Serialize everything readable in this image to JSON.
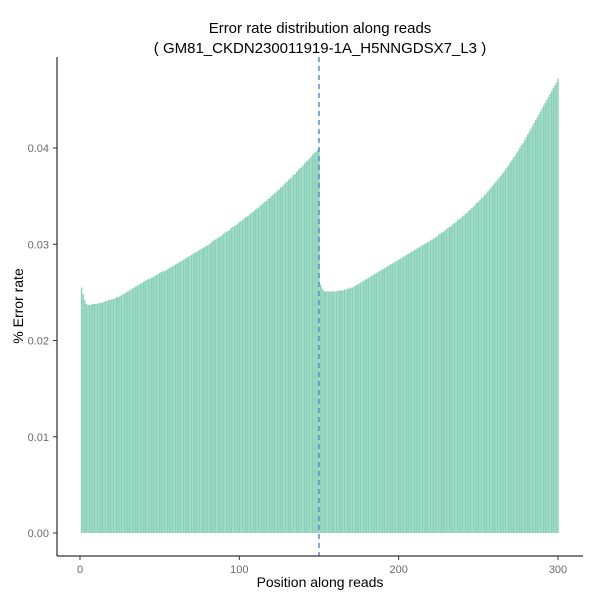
{
  "chart_data": {
    "type": "bar",
    "title": "Error rate distribution along reads",
    "subtitle": "( GM81_CKDN230011919-1A_H5NNGDSX7_L3 )",
    "xlabel": "Position along reads",
    "ylabel": "% Error rate",
    "xlim": [
      0,
      300
    ],
    "ylim": [
      0,
      0.047
    ],
    "xticks": [
      0,
      100,
      200,
      300
    ],
    "xtick_labels": [
      "0",
      "100",
      "200",
      "300"
    ],
    "yticks": [
      0,
      0.01,
      0.02,
      0.03,
      0.04
    ],
    "ytick_labels": [
      "0.00",
      "0.01",
      "0.02",
      "0.03",
      "0.04"
    ],
    "grid": false,
    "legend": "none",
    "bar_color": "#88d1b8",
    "vline": {
      "x": 150,
      "color": "#3b7dc4",
      "style": "dashed"
    },
    "x_start": 1,
    "values": [
      0.0255,
      0.0248,
      0.0242,
      0.0238,
      0.0237,
      0.0237,
      0.0237,
      0.0238,
      0.0238,
      0.0238,
      0.0238,
      0.0239,
      0.0239,
      0.0239,
      0.024,
      0.0241,
      0.0241,
      0.0242,
      0.0242,
      0.0243,
      0.0243,
      0.0244,
      0.0245,
      0.0245,
      0.0246,
      0.0247,
      0.0248,
      0.0249,
      0.025,
      0.0251,
      0.0252,
      0.0253,
      0.0254,
      0.0255,
      0.0256,
      0.0257,
      0.0258,
      0.0259,
      0.026,
      0.0261,
      0.0262,
      0.0263,
      0.0264,
      0.0264,
      0.0265,
      0.0266,
      0.0267,
      0.0268,
      0.0269,
      0.027,
      0.0271,
      0.0272,
      0.0272,
      0.0273,
      0.0274,
      0.0275,
      0.0276,
      0.0277,
      0.0278,
      0.0279,
      0.028,
      0.0281,
      0.0282,
      0.0283,
      0.0284,
      0.0285,
      0.0286,
      0.0287,
      0.0288,
      0.0289,
      0.029,
      0.0291,
      0.0292,
      0.0293,
      0.0294,
      0.0295,
      0.0296,
      0.0297,
      0.0298,
      0.0299,
      0.03,
      0.0301,
      0.0303,
      0.0304,
      0.0305,
      0.0306,
      0.0307,
      0.0308,
      0.0309,
      0.0311,
      0.0312,
      0.0313,
      0.0314,
      0.0315,
      0.0317,
      0.0318,
      0.0319,
      0.032,
      0.0321,
      0.0323,
      0.0324,
      0.0325,
      0.0327,
      0.0328,
      0.0329,
      0.033,
      0.0332,
      0.0333,
      0.0334,
      0.0336,
      0.0337,
      0.0338,
      0.034,
      0.0341,
      0.0343,
      0.0344,
      0.0345,
      0.0347,
      0.0348,
      0.035,
      0.0351,
      0.0353,
      0.0354,
      0.0356,
      0.0357,
      0.0359,
      0.036,
      0.0362,
      0.0364,
      0.0365,
      0.0367,
      0.0368,
      0.037,
      0.0372,
      0.0373,
      0.0375,
      0.0377,
      0.0379,
      0.038,
      0.0382,
      0.0384,
      0.0386,
      0.0387,
      0.0389,
      0.0391,
      0.0393,
      0.0395,
      0.0396,
      0.0398,
      0.04,
      0.0258,
      0.0254,
      0.0252,
      0.0251,
      0.0251,
      0.0251,
      0.0251,
      0.0251,
      0.0251,
      0.0251,
      0.0251,
      0.0252,
      0.0252,
      0.0252,
      0.0252,
      0.0253,
      0.0253,
      0.0254,
      0.0254,
      0.0255,
      0.0255,
      0.0256,
      0.0257,
      0.0258,
      0.0259,
      0.026,
      0.0261,
      0.0262,
      0.0263,
      0.0264,
      0.0265,
      0.0266,
      0.0267,
      0.0268,
      0.0269,
      0.027,
      0.0271,
      0.0272,
      0.0273,
      0.0274,
      0.0275,
      0.0276,
      0.0277,
      0.0278,
      0.0279,
      0.028,
      0.0281,
      0.0282,
      0.0283,
      0.0284,
      0.0285,
      0.0286,
      0.0287,
      0.0288,
      0.0289,
      0.029,
      0.0291,
      0.0292,
      0.0293,
      0.0294,
      0.0295,
      0.0296,
      0.0297,
      0.0298,
      0.0299,
      0.03,
      0.0301,
      0.0302,
      0.0303,
      0.0304,
      0.0305,
      0.0306,
      0.0307,
      0.0308,
      0.031,
      0.0311,
      0.0312,
      0.0313,
      0.0314,
      0.0316,
      0.0317,
      0.0318,
      0.0319,
      0.0321,
      0.0322,
      0.0323,
      0.0325,
      0.0326,
      0.0327,
      0.0329,
      0.033,
      0.0332,
      0.0333,
      0.0335,
      0.0336,
      0.0338,
      0.0339,
      0.0341,
      0.0343,
      0.0344,
      0.0346,
      0.0348,
      0.0349,
      0.0351,
      0.0353,
      0.0355,
      0.0357,
      0.0359,
      0.0361,
      0.0363,
      0.0365,
      0.0367,
      0.0369,
      0.0371,
      0.0373,
      0.0375,
      0.0378,
      0.038,
      0.0382,
      0.0385,
      0.0387,
      0.039,
      0.0392,
      0.0395,
      0.0397,
      0.04,
      0.0403,
      0.0405,
      0.0408,
      0.0411,
      0.0414,
      0.0417,
      0.042,
      0.0423,
      0.0426,
      0.0429,
      0.0432,
      0.0435,
      0.0438,
      0.0441,
      0.0444,
      0.0447,
      0.045,
      0.0453,
      0.0456,
      0.0459,
      0.0462,
      0.0465,
      0.0468,
      0.0472
    ]
  }
}
